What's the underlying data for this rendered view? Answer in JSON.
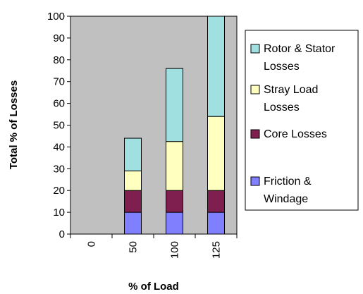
{
  "chart_data": {
    "type": "bar",
    "stacked": true,
    "title": "",
    "xlabel": "% of Load",
    "ylabel": "Total % of Losses",
    "categories": [
      "0",
      "50",
      "100",
      "125"
    ],
    "ylim": [
      0,
      100
    ],
    "ytick_step": 10,
    "yticks": [
      "0",
      "10",
      "20",
      "30",
      "40",
      "50",
      "60",
      "70",
      "80",
      "90",
      "100"
    ],
    "series": [
      {
        "name": "Friction & Windage",
        "legend_lines": [
          "Friction &",
          "Windage"
        ],
        "color": "#8080ff",
        "values": [
          0,
          10,
          10,
          10
        ]
      },
      {
        "name": "Core Losses",
        "legend_lines": [
          "Core Losses"
        ],
        "color": "#7f1f4f",
        "values": [
          0,
          10,
          10,
          10
        ]
      },
      {
        "name": "Stray Load Losses",
        "legend_lines": [
          "Stray Load",
          "Losses"
        ],
        "color": "#ffffc0",
        "values": [
          0,
          9,
          22.5,
          34
        ]
      },
      {
        "name": "Rotor & Stator Losses",
        "legend_lines": [
          "Rotor & Stator",
          "Losses"
        ],
        "color": "#a0e0e0",
        "values": [
          0,
          15,
          33.5,
          46
        ]
      }
    ],
    "plot_background": "#c0c0c0",
    "grid": false,
    "legend_position": "right"
  }
}
